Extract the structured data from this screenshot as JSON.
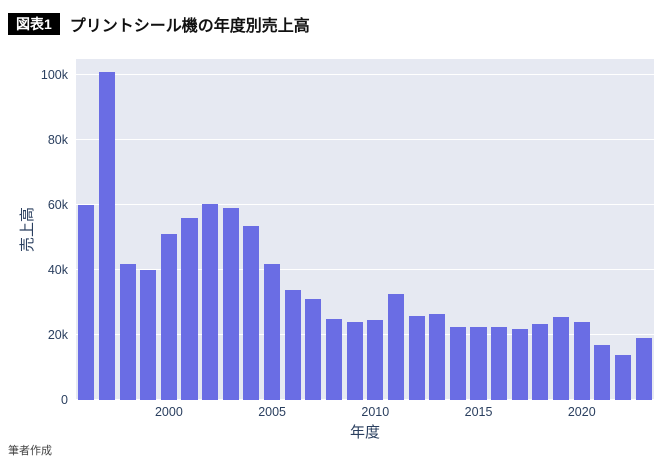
{
  "header": {
    "badge": "図表1",
    "title": "プリントシール機の年度別売上高"
  },
  "footer": {
    "credit": "筆者作成"
  },
  "colors": {
    "bar": "#6a6de4",
    "plot_bg": "#e6e9f2",
    "grid": "#ffffff",
    "tick_text": "#2a3f5f",
    "badge_bg": "#000000",
    "badge_text": "#ffffff"
  },
  "chart_data": {
    "type": "bar",
    "title": "プリントシール機の年度別売上高",
    "xlabel": "年度",
    "ylabel": "売上高",
    "categories": [
      1996,
      1997,
      1998,
      1999,
      2000,
      2001,
      2002,
      2003,
      2004,
      2005,
      2006,
      2007,
      2008,
      2009,
      2010,
      2011,
      2012,
      2013,
      2014,
      2015,
      2016,
      2017,
      2018,
      2019,
      2020,
      2021,
      2022,
      2023
    ],
    "values": [
      60000,
      101000,
      42000,
      40000,
      51000,
      56000,
      60500,
      59000,
      53500,
      42000,
      34000,
      31000,
      25000,
      24000,
      24500,
      32500,
      26000,
      26500,
      22500,
      22500,
      22500,
      22000,
      23500,
      25500,
      24000,
      17000,
      14000,
      19000
    ],
    "ylim": [
      0,
      105000
    ],
    "yticks": [
      0,
      20000,
      40000,
      60000,
      80000,
      100000
    ],
    "ytick_labels": [
      "0",
      "20k",
      "40k",
      "60k",
      "80k",
      "100k"
    ],
    "xticks": [
      2000,
      2005,
      2010,
      2015,
      2020
    ],
    "grid": true,
    "legend": false
  }
}
